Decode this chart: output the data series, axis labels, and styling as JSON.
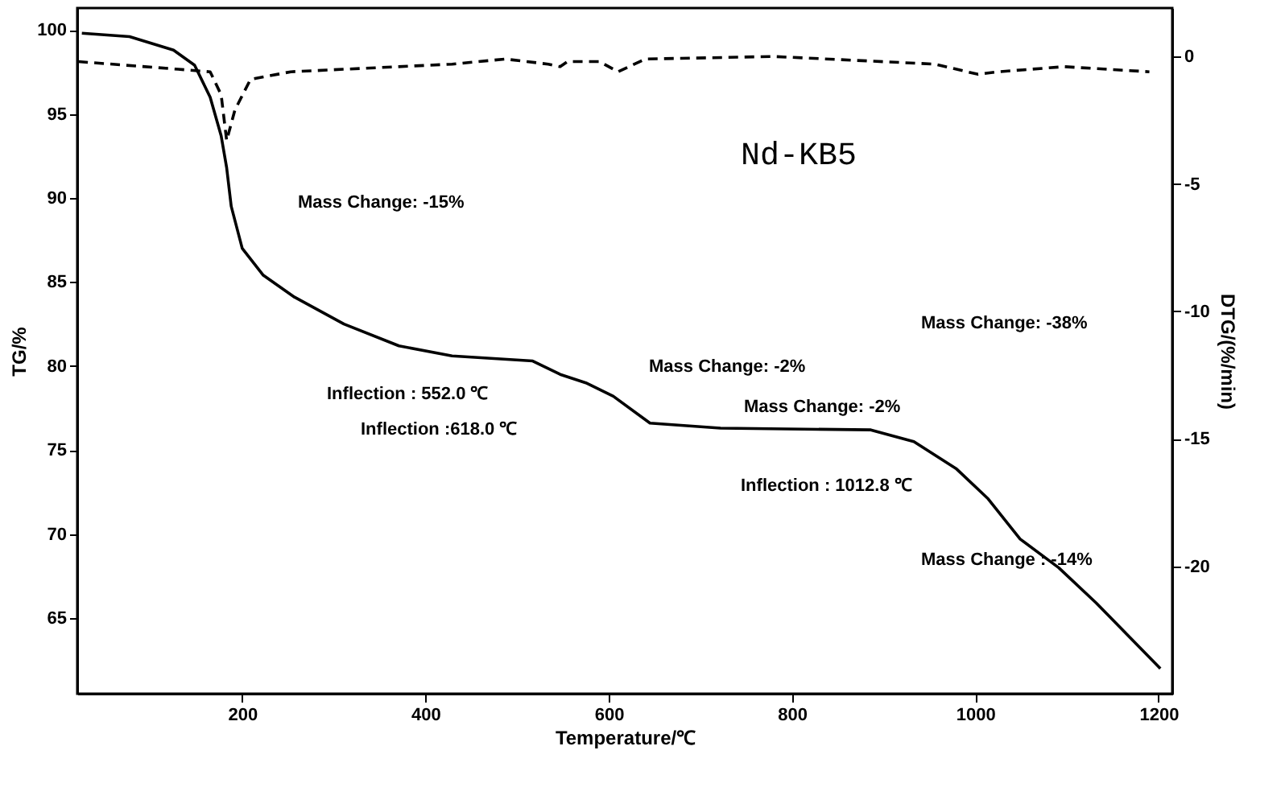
{
  "chart_data": {
    "type": "line",
    "xlabel": "Temperature/℃",
    "ylabel": "TG/%",
    "y2label": "DTG/(%/min)",
    "xlim": [
      20,
      1215
    ],
    "ylim": [
      60.5,
      101.3
    ],
    "y2lim": [
      -25,
      1.9
    ],
    "xticks": [
      200,
      400,
      600,
      800,
      1000,
      1200
    ],
    "yticks": [
      65,
      70,
      75,
      80,
      85,
      90,
      95,
      100
    ],
    "y2ticks": [
      0,
      -5,
      -10,
      -15,
      -20
    ],
    "grid": false,
    "marker": "none",
    "series": [
      {
        "color": "#000000",
        "line_style": "solid",
        "x": [
          25,
          77,
          125,
          148,
          165,
          177,
          183,
          188,
          200,
          223,
          257,
          311,
          371,
          429,
          517,
          547,
          575,
          605,
          645,
          722,
          886,
          933,
          979,
          1014,
          1049,
          1091,
          1132,
          1202
        ],
        "values": [
          99.8,
          99.6,
          98.8,
          97.9,
          96.0,
          93.7,
          91.8,
          89.5,
          87.0,
          85.4,
          84.1,
          82.5,
          81.2,
          80.6,
          80.3,
          79.5,
          79.0,
          78.2,
          76.6,
          76.3,
          76.2,
          75.5,
          73.9,
          72.1,
          69.7,
          68.0,
          65.9,
          62.0
        ]
      },
      {
        "color": "#000000",
        "line_style": "dashed",
        "axis": "y2",
        "x": [
          21,
          130,
          165,
          177,
          183,
          192,
          209,
          253,
          429,
          487,
          534,
          547,
          555,
          590,
          610,
          640,
          780,
          956,
          1003,
          1025,
          1097,
          1190
        ],
        "values": [
          -0.2,
          -0.5,
          -0.6,
          -1.5,
          -3.3,
          -2.1,
          -0.9,
          -0.6,
          -0.3,
          -0.1,
          -0.3,
          -0.4,
          -0.2,
          -0.2,
          -0.6,
          -0.1,
          0,
          -0.3,
          -0.7,
          -0.6,
          -0.4,
          -0.6
        ]
      }
    ],
    "annotations": [
      "Mass Change: -15%",
      "Nd-KB5",
      "Inflection : 552.0 ℃",
      "Inflection :618.0 ℃",
      "Mass Change: -2%",
      "Mass Change: -2%",
      "Inflection : 1012.8 ℃",
      "Mass Change: -38%",
      "Mass Change : -14%"
    ]
  }
}
